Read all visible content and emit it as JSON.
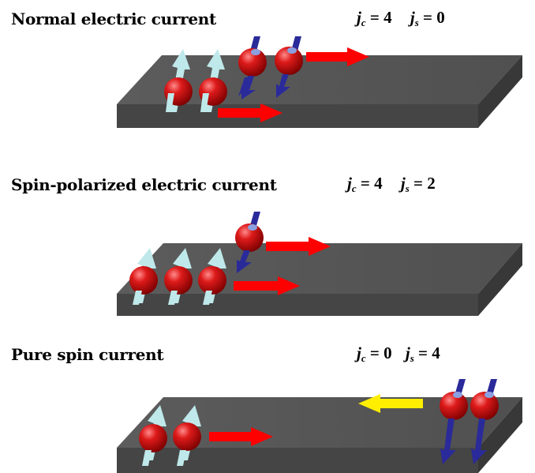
{
  "panels": [
    {
      "title": "Normal electric current",
      "jc_symbol": "j",
      "jc_sub": "c",
      "jc_value": "= 4",
      "js_symbol": "j",
      "js_sub": "s",
      "js_value": "= 0"
    },
    {
      "title": "Spin-polarized electric current",
      "jc_symbol": "j",
      "jc_sub": "c",
      "jc_value": "= 4",
      "js_symbol": "j",
      "js_sub": "s",
      "js_value": "= 2"
    },
    {
      "title": "Pure spin current",
      "jc_symbol": "j",
      "jc_sub": "c",
      "jc_value": "= 0",
      "js_symbol": "j",
      "js_sub": "s",
      "js_value": "= 4"
    }
  ],
  "colors": {
    "slab_top": "#5a5a5a",
    "slab_side": "#404040",
    "electron": "#cc0000",
    "spin_up_arrow": "#bfe8ea",
    "spin_down_arrow": "#2a2a9a",
    "charge_flow_arrow": "#ff0000",
    "spin_flow_arrow": "#ffee00"
  }
}
